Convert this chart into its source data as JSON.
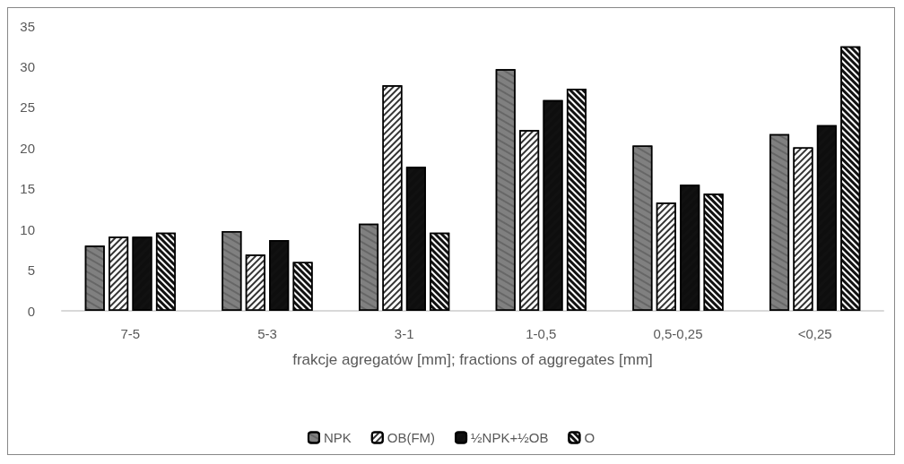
{
  "chart_data": {
    "type": "bar",
    "xlabel": "frakcje agregatów [mm]; fractions of aggregates [mm]",
    "categories": [
      "7-5",
      "5-3",
      "3-1",
      "1-0,5",
      "0,5-0,25",
      "<0,25"
    ],
    "series": [
      {
        "name": "NPK",
        "color": "#808080",
        "values": [
          8.0,
          9.8,
          10.7,
          29.7,
          20.3,
          21.7
        ]
      },
      {
        "name": "OB(FM)",
        "color": "#ffffff",
        "values": [
          9.1,
          6.9,
          27.7,
          22.2,
          13.3,
          20.1
        ]
      },
      {
        "name": "½NPK+½OB",
        "color": "#111111",
        "values": [
          9.1,
          8.7,
          17.7,
          25.9,
          15.5,
          22.8
        ]
      },
      {
        "name": "O",
        "color": "#ffffff",
        "values": [
          9.6,
          6.0,
          9.6,
          27.3,
          14.4,
          32.5
        ]
      }
    ],
    "ylim": [
      0,
      35
    ],
    "yticks": [
      0,
      5,
      10,
      15,
      20,
      25,
      30,
      35
    ],
    "grid": false,
    "legend": "bottom"
  }
}
